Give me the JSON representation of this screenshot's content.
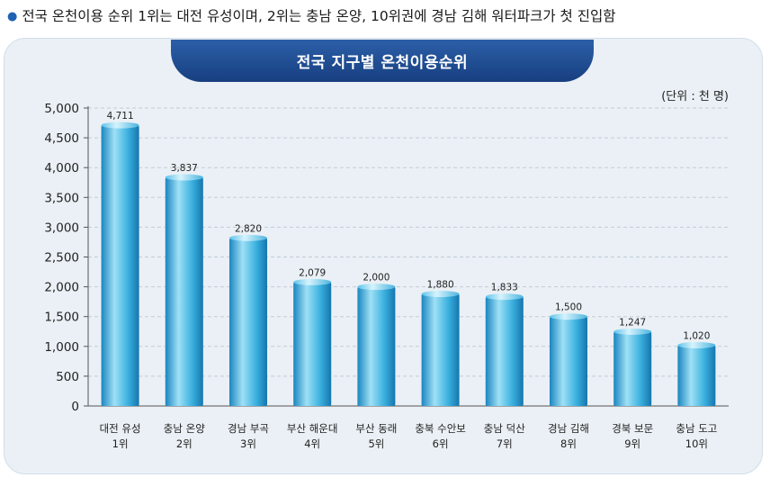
{
  "headline": "전국 온천이용 순위 1위는 대전 유성이며, 2위는 충남 온양, 10위권에 경남 김해 워터파크가 첫 진입함",
  "chart_data": {
    "type": "bar",
    "title": "전국 지구별 온천이용순위",
    "unit": "(단위 : 천 명)",
    "categories": [
      [
        "대전 유성",
        "1위"
      ],
      [
        "충남 온양",
        "2위"
      ],
      [
        "경남 부곡",
        "3위"
      ],
      [
        "부산 해운대",
        "4위"
      ],
      [
        "부산 동래",
        "5위"
      ],
      [
        "충북 수안보",
        "6위"
      ],
      [
        "충남 덕산",
        "7위"
      ],
      [
        "경남 김해",
        "8위"
      ],
      [
        "경북 보문",
        "9위"
      ],
      [
        "충남 도고",
        "10위"
      ]
    ],
    "values": [
      4711,
      3837,
      2820,
      2079,
      2000,
      1880,
      1833,
      1500,
      1247,
      1020
    ],
    "value_labels": [
      "4,711",
      "3,837",
      "2,820",
      "2,079",
      "2,000",
      "1,880",
      "1,833",
      "1,500",
      "1,247",
      "1,020"
    ],
    "ylim": [
      0,
      5000
    ],
    "yticks": [
      "0",
      "500",
      "1,000",
      "1,500",
      "2,000",
      "2,500",
      "3,000",
      "3,500",
      "4,000",
      "4,500",
      "5,000"
    ],
    "grid": true,
    "colors": {
      "bar_light": "#9fe0f6",
      "bar_mid": "#3cb2e0",
      "bar_dark": "#1785be",
      "title_bg": "#1f4e96"
    }
  }
}
